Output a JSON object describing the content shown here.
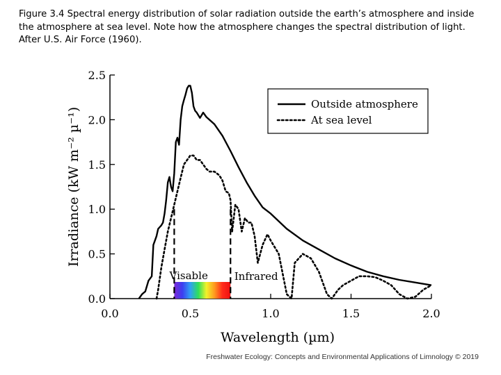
{
  "caption": "Figure 3.4 Spectral energy distribution of solar radiation outside the earth’s atmosphere and inside the atmosphere at sea level. Note how the atmosphere changes the spectral distribution of light. After U.S. Air Force (1960).",
  "footer": "Freshwater Ecology: Concepts and Environmental Applications of Limnology © 2019",
  "colors": {
    "axis": "#000000",
    "spectrum": [
      "#7a2bd6",
      "#3c3cf0",
      "#2fa0f5",
      "#2ee05a",
      "#f2f22a",
      "#ff9a1f",
      "#ff2a1a",
      "#ee1010"
    ]
  },
  "chart_data": {
    "type": "line",
    "xlabel": "Wavelength (µm)",
    "ylabel": "Irradiance (kW m⁻² µ⁻¹)",
    "xlim": [
      0.0,
      2.0
    ],
    "ylim": [
      0.0,
      2.5
    ],
    "x_ticks": [
      "0.0",
      "0.5",
      "1.0",
      "1.5",
      "2.0"
    ],
    "y_ticks": [
      "0.0",
      "0.5",
      "1.0",
      "1.5",
      "2.0",
      "2.5"
    ],
    "legend_position": "top-right",
    "grid": false,
    "series": [
      {
        "name": "Outside atmosphere",
        "style": "solid",
        "points": [
          [
            0.18,
            0.0
          ],
          [
            0.2,
            0.05
          ],
          [
            0.22,
            0.08
          ],
          [
            0.24,
            0.2
          ],
          [
            0.26,
            0.25
          ],
          [
            0.27,
            0.6
          ],
          [
            0.28,
            0.65
          ],
          [
            0.29,
            0.7
          ],
          [
            0.3,
            0.78
          ],
          [
            0.31,
            0.8
          ],
          [
            0.32,
            0.82
          ],
          [
            0.33,
            0.85
          ],
          [
            0.34,
            0.95
          ],
          [
            0.35,
            1.1
          ],
          [
            0.36,
            1.3
          ],
          [
            0.37,
            1.36
          ],
          [
            0.38,
            1.25
          ],
          [
            0.39,
            1.2
          ],
          [
            0.4,
            1.4
          ],
          [
            0.41,
            1.75
          ],
          [
            0.42,
            1.8
          ],
          [
            0.43,
            1.72
          ],
          [
            0.44,
            2.0
          ],
          [
            0.45,
            2.15
          ],
          [
            0.46,
            2.22
          ],
          [
            0.47,
            2.28
          ],
          [
            0.48,
            2.35
          ],
          [
            0.49,
            2.38
          ],
          [
            0.5,
            2.38
          ],
          [
            0.51,
            2.3
          ],
          [
            0.52,
            2.15
          ],
          [
            0.53,
            2.1
          ],
          [
            0.54,
            2.08
          ],
          [
            0.55,
            2.05
          ],
          [
            0.56,
            2.02
          ],
          [
            0.57,
            2.05
          ],
          [
            0.58,
            2.08
          ],
          [
            0.6,
            2.03
          ],
          [
            0.65,
            1.95
          ],
          [
            0.7,
            1.82
          ],
          [
            0.75,
            1.65
          ],
          [
            0.8,
            1.47
          ],
          [
            0.85,
            1.3
          ],
          [
            0.9,
            1.15
          ],
          [
            0.95,
            1.02
          ],
          [
            1.0,
            0.95
          ],
          [
            1.1,
            0.78
          ],
          [
            1.2,
            0.65
          ],
          [
            1.3,
            0.55
          ],
          [
            1.4,
            0.45
          ],
          [
            1.5,
            0.37
          ],
          [
            1.6,
            0.3
          ],
          [
            1.7,
            0.25
          ],
          [
            1.8,
            0.21
          ],
          [
            1.9,
            0.18
          ],
          [
            2.0,
            0.15
          ]
        ]
      },
      {
        "name": "At sea level",
        "style": "dotted",
        "points": [
          [
            0.29,
            0.0
          ],
          [
            0.3,
            0.1
          ],
          [
            0.32,
            0.35
          ],
          [
            0.34,
            0.55
          ],
          [
            0.36,
            0.75
          ],
          [
            0.38,
            0.9
          ],
          [
            0.4,
            1.05
          ],
          [
            0.42,
            1.2
          ],
          [
            0.44,
            1.35
          ],
          [
            0.46,
            1.5
          ],
          [
            0.48,
            1.55
          ],
          [
            0.5,
            1.6
          ],
          [
            0.52,
            1.6
          ],
          [
            0.54,
            1.55
          ],
          [
            0.56,
            1.55
          ],
          [
            0.58,
            1.5
          ],
          [
            0.6,
            1.45
          ],
          [
            0.62,
            1.42
          ],
          [
            0.65,
            1.42
          ],
          [
            0.68,
            1.38
          ],
          [
            0.7,
            1.32
          ],
          [
            0.72,
            1.2
          ],
          [
            0.74,
            1.18
          ],
          [
            0.75,
            1.1
          ],
          [
            0.76,
            0.75
          ],
          [
            0.78,
            1.05
          ],
          [
            0.8,
            1.0
          ],
          [
            0.82,
            0.75
          ],
          [
            0.84,
            0.9
          ],
          [
            0.86,
            0.85
          ],
          [
            0.88,
            0.85
          ],
          [
            0.9,
            0.7
          ],
          [
            0.92,
            0.4
          ],
          [
            0.95,
            0.6
          ],
          [
            0.98,
            0.72
          ],
          [
            1.0,
            0.65
          ],
          [
            1.05,
            0.5
          ],
          [
            1.1,
            0.05
          ],
          [
            1.13,
            0.0
          ],
          [
            1.15,
            0.4
          ],
          [
            1.2,
            0.5
          ],
          [
            1.25,
            0.45
          ],
          [
            1.3,
            0.3
          ],
          [
            1.35,
            0.05
          ],
          [
            1.38,
            0.0
          ],
          [
            1.42,
            0.1
          ],
          [
            1.45,
            0.15
          ],
          [
            1.5,
            0.2
          ],
          [
            1.55,
            0.25
          ],
          [
            1.6,
            0.25
          ],
          [
            1.65,
            0.24
          ],
          [
            1.7,
            0.2
          ],
          [
            1.75,
            0.15
          ],
          [
            1.8,
            0.05
          ],
          [
            1.85,
            0.0
          ],
          [
            1.9,
            0.02
          ],
          [
            1.95,
            0.1
          ],
          [
            2.0,
            0.15
          ]
        ]
      }
    ],
    "annotations": [
      {
        "text": "Visable",
        "x": 0.49,
        "y": 0.25
      },
      {
        "text": "Infrared",
        "x": 0.91,
        "y": 0.24
      }
    ],
    "visible_band": {
      "x_start": 0.4,
      "x_end": 0.75,
      "marker_height": 1.0
    }
  }
}
